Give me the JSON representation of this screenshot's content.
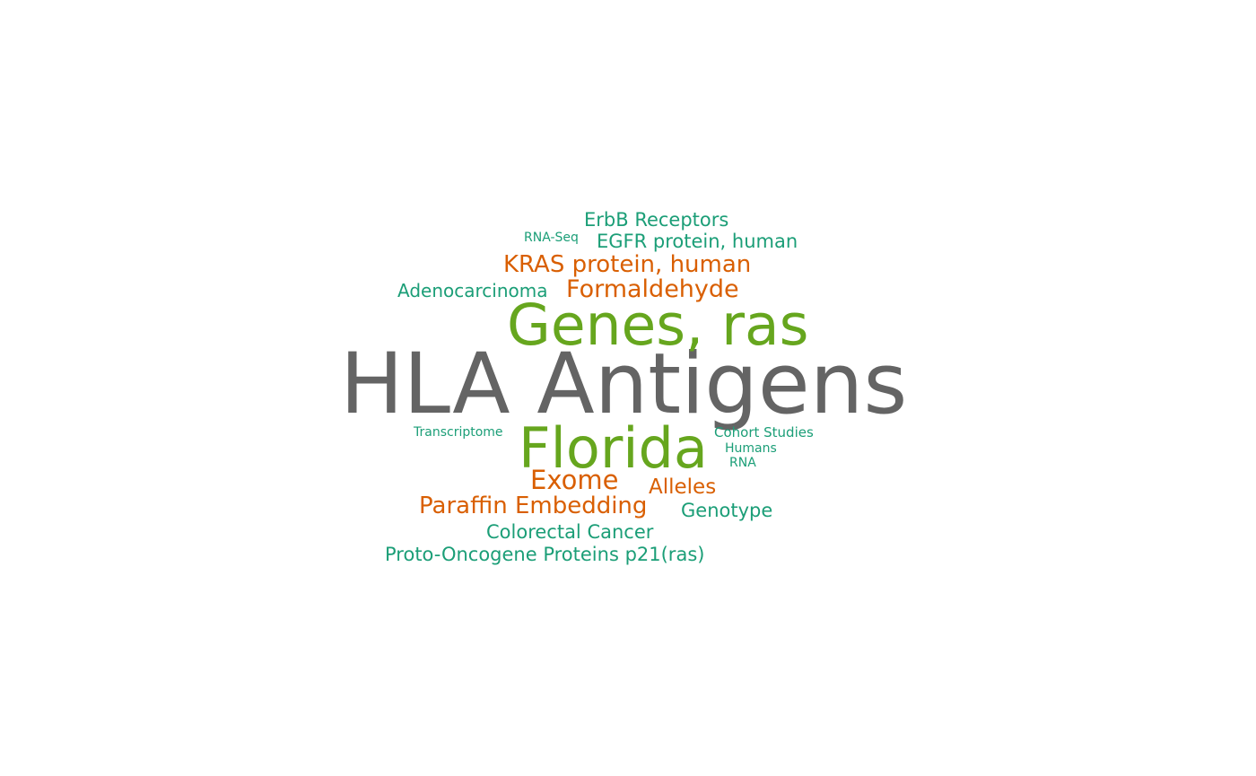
{
  "palette": {
    "gray": "#646464",
    "green": "#66a61e",
    "orange": "#d95f02",
    "teal": "#1b9e77"
  },
  "words": [
    {
      "id": "hla-antigens",
      "text": "HLA Antigens",
      "color": "#646464"
    },
    {
      "id": "genes-ras",
      "text": "Genes, ras",
      "color": "#66a61e"
    },
    {
      "id": "florida",
      "text": "Florida",
      "color": "#66a61e"
    },
    {
      "id": "kras-protein-human",
      "text": "KRAS protein, human",
      "color": "#d95f02"
    },
    {
      "id": "formaldehyde",
      "text": "Formaldehyde",
      "color": "#d95f02"
    },
    {
      "id": "exome",
      "text": "Exome",
      "color": "#d95f02"
    },
    {
      "id": "alleles",
      "text": "Alleles",
      "color": "#d95f02"
    },
    {
      "id": "paraffin-embedding",
      "text": "Paraffin Embedding",
      "color": "#d95f02"
    },
    {
      "id": "erbb-receptors",
      "text": "ErbB Receptors",
      "color": "#1b9e77"
    },
    {
      "id": "egfr-protein-human",
      "text": "EGFR protein, human",
      "color": "#1b9e77"
    },
    {
      "id": "rna-seq",
      "text": "RNA-Seq",
      "color": "#1b9e77"
    },
    {
      "id": "adenocarcinoma",
      "text": "Adenocarcinoma",
      "color": "#1b9e77"
    },
    {
      "id": "transcriptome",
      "text": "Transcriptome",
      "color": "#1b9e77"
    },
    {
      "id": "cohort-studies",
      "text": "Cohort Studies",
      "color": "#1b9e77"
    },
    {
      "id": "humans",
      "text": "Humans",
      "color": "#1b9e77"
    },
    {
      "id": "rna",
      "text": "RNA",
      "color": "#1b9e77"
    },
    {
      "id": "genotype",
      "text": "Genotype",
      "color": "#1b9e77"
    },
    {
      "id": "colorectal-cancer",
      "text": "Colorectal Cancer",
      "color": "#1b9e77"
    },
    {
      "id": "proto-oncogene-proteins-p21ras",
      "text": "Proto-Oncogene Proteins p21(ras)",
      "color": "#1b9e77"
    }
  ]
}
